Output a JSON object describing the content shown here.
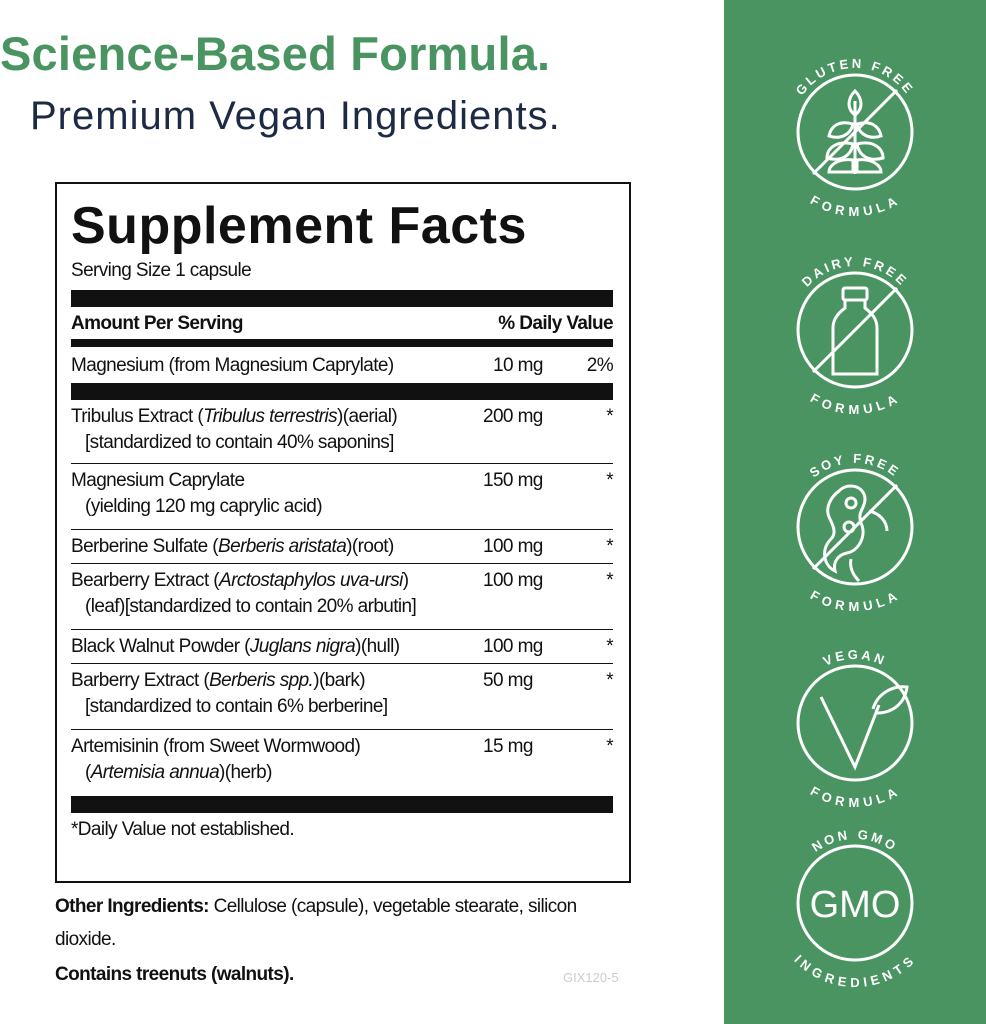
{
  "header": {
    "title": "Science-Based Formula.",
    "subtitle": "Premium Vegan Ingredients."
  },
  "facts": {
    "title": "Supplement Facts",
    "serving_size": "Serving Size 1 capsule",
    "col_amount": "Amount Per Serving",
    "col_dv": "% Daily Value",
    "magnesium": {
      "name": "Magnesium (from Magnesium Caprylate)",
      "amount": "10 mg",
      "dv": "2%"
    },
    "rows": [
      {
        "name": "Tribulus Extract (",
        "latin": "Tribulus terrestris",
        "rest": ")(aerial)",
        "line2": "[standardized to contain 40% saponins]",
        "line2_latin": "",
        "line2_rest": "",
        "amount": "200 mg",
        "dv": "*"
      },
      {
        "name": "Magnesium Caprylate",
        "latin": "",
        "rest": "",
        "line2": "(yielding 120 mg caprylic acid)",
        "line2_latin": "",
        "line2_rest": "",
        "amount": "150 mg",
        "dv": "*"
      },
      {
        "name": "Berberine Sulfate (",
        "latin": "Berberis aristata",
        "rest": ")(root)",
        "line2": "",
        "line2_latin": "",
        "line2_rest": "",
        "amount": "100 mg",
        "dv": "*"
      },
      {
        "name": "Bearberry Extract (",
        "latin": "Arctostaphylos uva-ursi",
        "rest": ")",
        "line2": "(leaf)[standardized to contain 20% arbutin]",
        "line2_latin": "",
        "line2_rest": "",
        "amount": "100 mg",
        "dv": "*"
      },
      {
        "name": "Black Walnut Powder (",
        "latin": "Juglans nigra",
        "rest": ")(hull)",
        "line2": "",
        "line2_latin": "",
        "line2_rest": "",
        "amount": "100 mg",
        "dv": "*"
      },
      {
        "name": "Barberry Extract (",
        "latin": "Berberis spp.",
        "rest": ")(bark)",
        "line2": "[standardized to contain 6% berberine]",
        "line2_latin": "",
        "line2_rest": "",
        "amount": "50 mg",
        "dv": "*"
      },
      {
        "name": "Artemisinin (from Sweet Wormwood)",
        "latin": "",
        "rest": "",
        "line2": "(",
        "line2_latin": "Artemisia annua",
        "line2_rest": ")(herb)",
        "amount": "15 mg",
        "dv": "*"
      }
    ],
    "footnote": "*Daily Value not established."
  },
  "other": {
    "label": "Other Ingredients:",
    "text": " Cellulose (capsule), vegetable stearate, silicon dioxide.",
    "allergen": "Contains treenuts (walnuts)."
  },
  "code": "GIX120-5",
  "badges": [
    {
      "top": "GLUTEN FREE",
      "bottom": "FORMULA",
      "icon": "wheat-icon"
    },
    {
      "top": "DAIRY FREE",
      "bottom": "FORMULA",
      "icon": "milk-bottle-icon"
    },
    {
      "top": "SOY FREE",
      "bottom": "FORMULA",
      "icon": "soybean-icon"
    },
    {
      "top": "VEGAN",
      "bottom": "FORMULA",
      "icon": "leaf-v-icon"
    },
    {
      "top": "NON GMO",
      "bottom": "INGREDIENTS",
      "icon": "gmo-icon",
      "center": "GMO"
    }
  ],
  "colors": {
    "brand_green": "#4a9462",
    "navy": "#1d2a44"
  }
}
